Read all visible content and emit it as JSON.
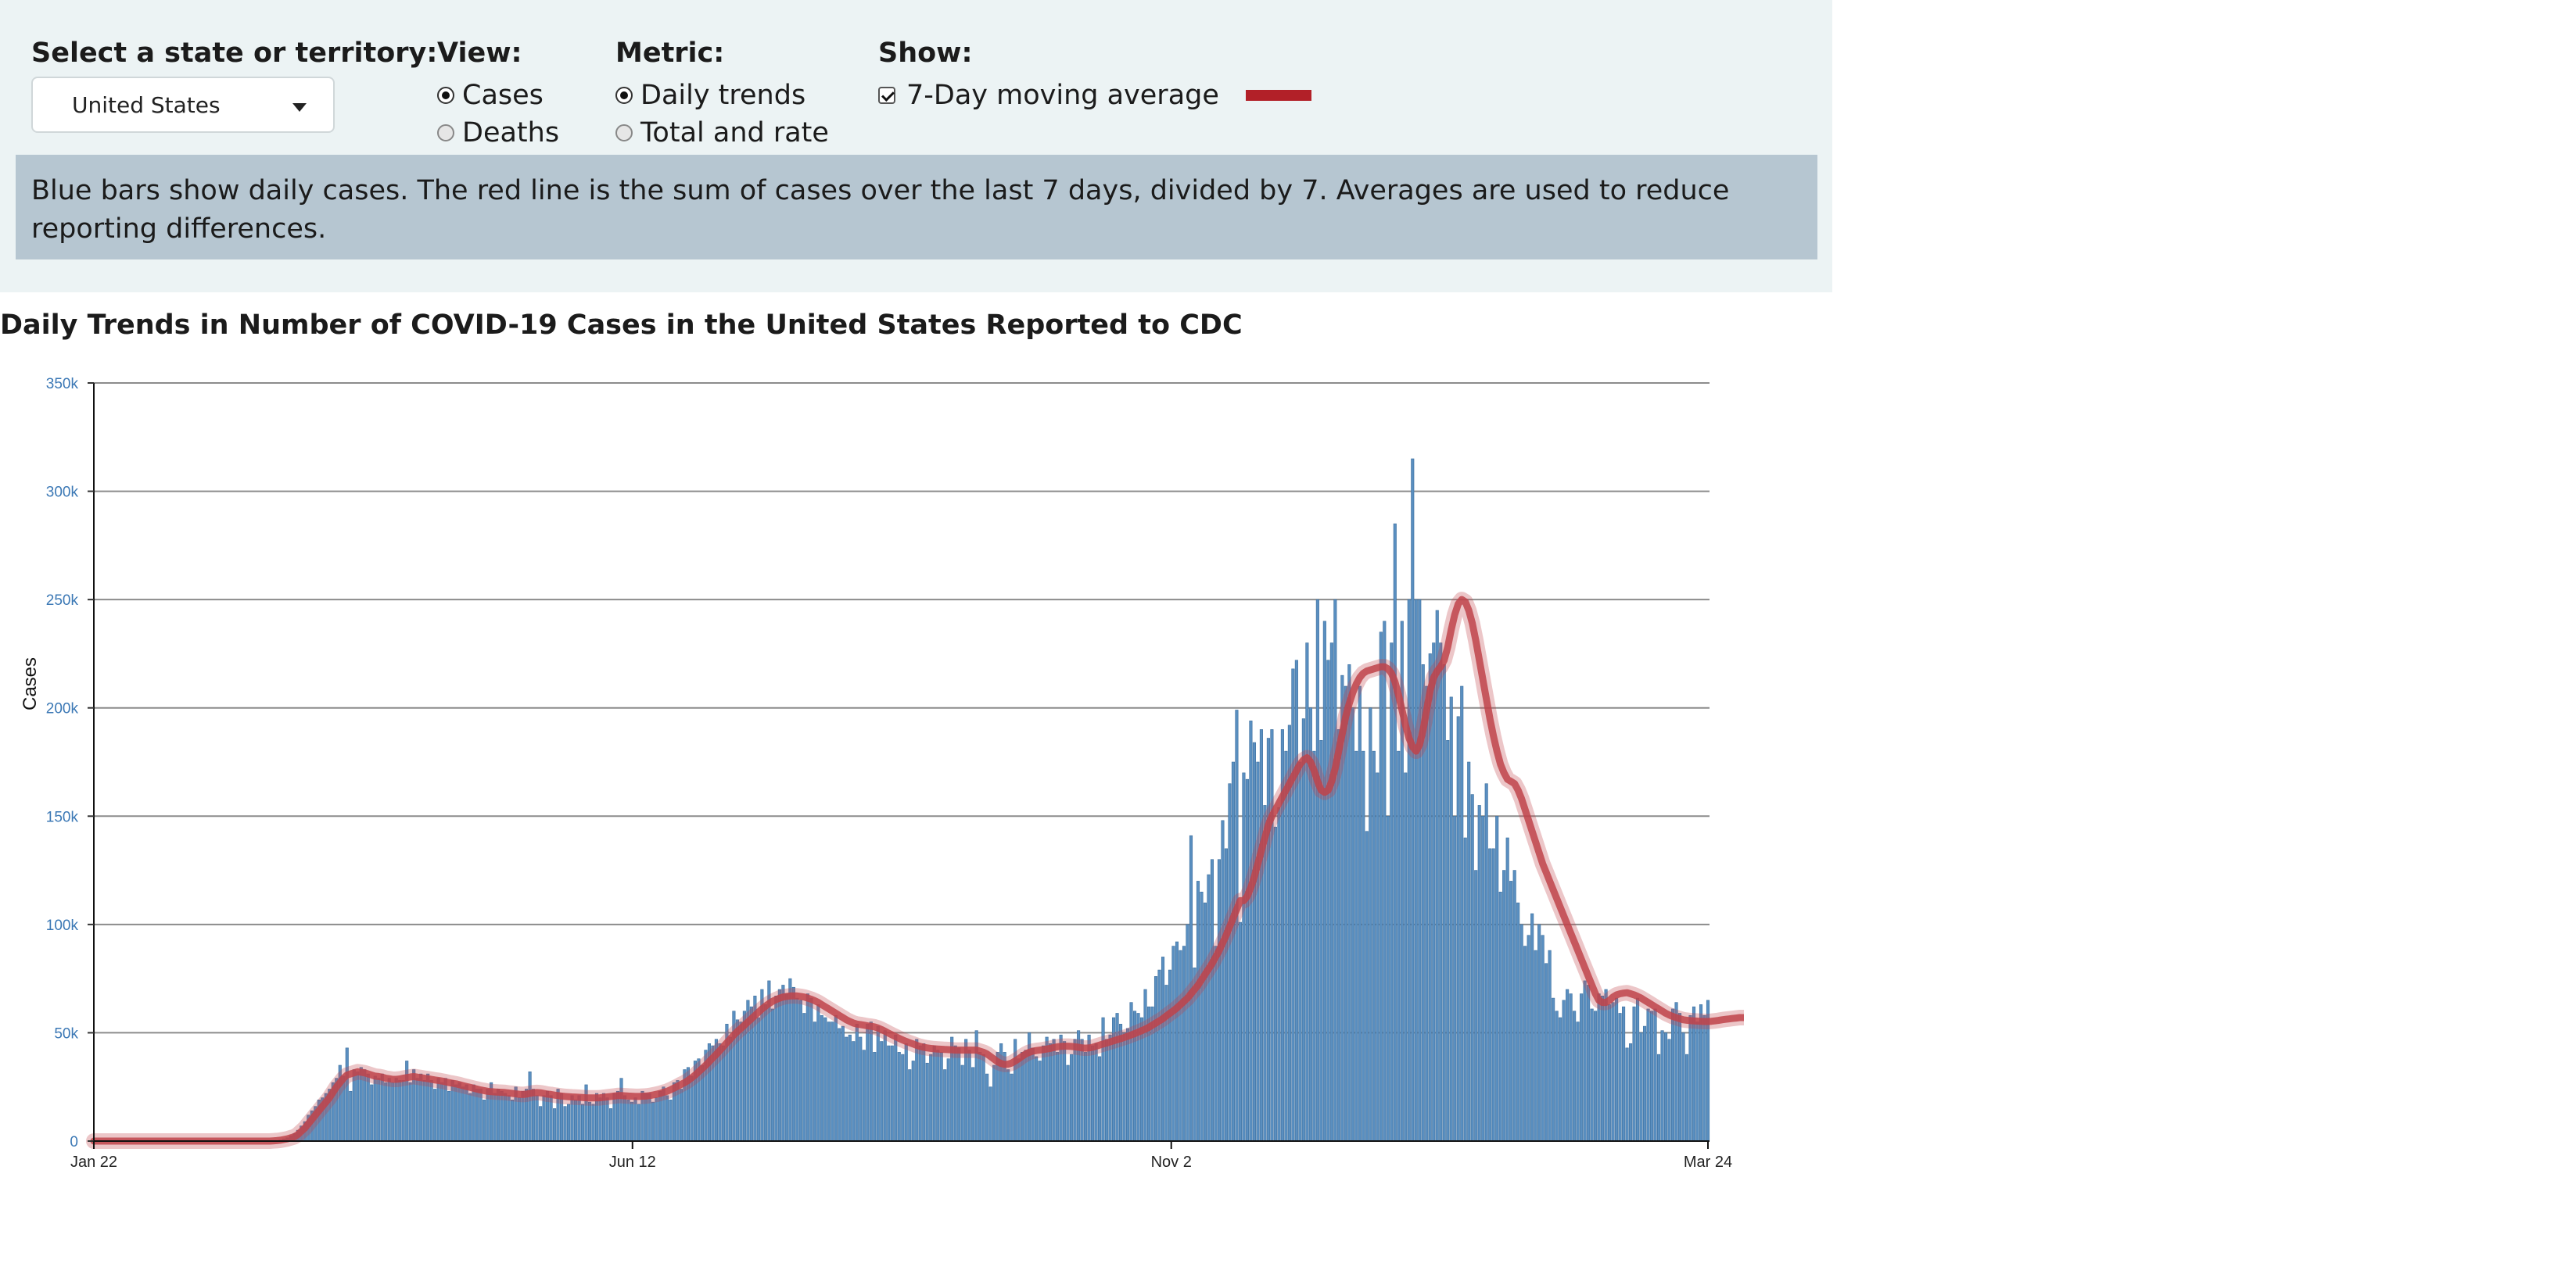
{
  "controls": {
    "state": {
      "label": "Select a state or territory:",
      "selected": "United States"
    },
    "view": {
      "label": "View:",
      "options": [
        "Cases",
        "Deaths"
      ],
      "selected": "Cases"
    },
    "metric": {
      "label": "Metric:",
      "options": [
        "Daily trends",
        "Total and rate"
      ],
      "selected": "Daily trends"
    },
    "show": {
      "label": "Show:",
      "option": "7-Day moving average",
      "checked": true
    }
  },
  "note": "Blue bars show daily cases. The red line is the sum of cases over the last 7 days, divided by 7. Averages are used to reduce reporting differences.",
  "colors": {
    "bar": "#5a8fc0",
    "bar_edge": "#3d6f9e",
    "line": "#c0434a",
    "panel": "#ecf3f4",
    "note": "#b6c6d1",
    "tick": "#3b78b5"
  },
  "chart_data": {
    "type": "bar",
    "title": "Daily Trends in Number of COVID-19 Cases in the United States Reported to CDC",
    "xlabel": "",
    "ylabel": "Cases",
    "ylim": [
      0,
      350000
    ],
    "y_ticks": [
      "0",
      "50k",
      "100k",
      "150k",
      "200k",
      "250k",
      "300k",
      "350k"
    ],
    "x_ticks": [
      "Jan 22",
      "Jun 12",
      "Nov 2",
      "Mar 24"
    ],
    "grid": true,
    "series": [
      {
        "kind": "bar",
        "values": [
          0,
          0,
          0,
          0,
          0,
          0,
          0,
          0,
          0,
          0,
          0,
          0,
          0,
          0,
          0,
          0,
          0,
          0,
          0,
          0,
          0,
          0,
          0,
          0,
          0,
          0,
          0,
          0,
          0,
          0,
          0,
          0,
          0,
          0,
          0,
          0,
          0,
          0,
          0,
          0,
          0,
          0,
          0,
          0,
          0,
          0,
          0,
          0,
          0,
          0,
          0,
          100,
          200,
          500,
          1000,
          1500,
          2500,
          3500,
          5000,
          7000,
          9000,
          12000,
          14000,
          16000,
          19000,
          20000,
          22000,
          24000,
          27000,
          29000,
          35000,
          30000,
          43000,
          23000,
          33000,
          32000,
          34000,
          33000,
          31000,
          26000,
          30000,
          29000,
          31000,
          27000,
          29000,
          27000,
          29000,
          28000,
          28000,
          37000,
          27000,
          33000,
          29000,
          31000,
          28000,
          31000,
          28000,
          24000,
          29000,
          27000,
          29000,
          23000,
          28000,
          26000,
          27000,
          25000,
          26000,
          22000,
          26000,
          24000,
          24000,
          19000,
          24000,
          27000,
          22000,
          24000,
          23000,
          22000,
          21000,
          19000,
          25000,
          20000,
          23000,
          24000,
          32000,
          24000,
          21000,
          16000,
          21000,
          23000,
          21000,
          15000,
          24000,
          22000,
          16000,
          17000,
          21000,
          19000,
          21000,
          17000,
          26000,
          18000,
          17000,
          22000,
          20000,
          22000,
          20000,
          15000,
          22000,
          23000,
          29000,
          21000,
          19000,
          18000,
          20000,
          17000,
          23000,
          22000,
          22000,
          18000,
          20000,
          23000,
          25000,
          21000,
          19000,
          27000,
          28000,
          24000,
          33000,
          34000,
          30000,
          37000,
          38000,
          35000,
          42000,
          45000,
          44000,
          47000,
          45000,
          44000,
          54000,
          48000,
          60000,
          56000,
          55000,
          60000,
          65000,
          62000,
          67000,
          57000,
          70000,
          63000,
          74000,
          61000,
          67000,
          70000,
          72000,
          68000,
          75000,
          71000,
          66000,
          65000,
          59000,
          68000,
          66000,
          55000,
          63000,
          58000,
          57000,
          55000,
          55000,
          58000,
          52000,
          53000,
          48000,
          49000,
          46000,
          54000,
          48000,
          42000,
          54000,
          55000,
          41000,
          53000,
          46000,
          51000,
          44000,
          44000,
          49000,
          41000,
          40000,
          45000,
          33000,
          37000,
          47000,
          44000,
          45000,
          36000,
          40000,
          44000,
          42000,
          41000,
          33000,
          38000,
          48000,
          44000,
          43000,
          35000,
          47000,
          42000,
          34000,
          51000,
          41000,
          40000,
          31000,
          25000,
          35000,
          41000,
          45000,
          41000,
          33000,
          31000,
          47000,
          38000,
          41000,
          42000,
          50000,
          43000,
          39000,
          37000,
          44000,
          48000,
          45000,
          47000,
          41000,
          49000,
          46000,
          35000,
          40000,
          47000,
          51000,
          47000,
          41000,
          49000,
          44000,
          45000,
          39000,
          57000,
          47000,
          49000,
          57000,
          59000,
          54000,
          50000,
          52000,
          64000,
          60000,
          59000,
          57000,
          70000,
          62000,
          62000,
          76000,
          79000,
          85000,
          72000,
          79000,
          90000,
          92000,
          88000,
          90000,
          100000,
          141000,
          80000,
          120000,
          115000,
          110000,
          123000,
          130000,
          90000,
          130000,
          148000,
          135000,
          165000,
          175000,
          199000,
          101000,
          170000,
          167000,
          194000,
          184000,
          175000,
          190000,
          155000,
          186000,
          190000,
          145000,
          154000,
          190000,
          180000,
          192000,
          218000,
          222000,
          175000,
          195000,
          230000,
          200000,
          180000,
          250000,
          185000,
          240000,
          222000,
          230000,
          250000,
          190000,
          215000,
          210000,
          220000,
          200000,
          180000,
          210000,
          180000,
          143000,
          200000,
          180000,
          170000,
          235000,
          240000,
          150000,
          230000,
          285000,
          180000,
          240000,
          170000,
          250000,
          315000,
          250000,
          250000,
          220000,
          210000,
          225000,
          230000,
          245000,
          230000,
          220000,
          185000,
          205000,
          150000,
          196000,
          210000,
          140000,
          175000,
          160000,
          125000,
          155000,
          150000,
          165000,
          135000,
          135000,
          150000,
          115000,
          125000,
          140000,
          120000,
          125000,
          110000,
          100000,
          90000,
          95000,
          105000,
          88000,
          100000,
          95000,
          82000,
          88000,
          66000,
          60000,
          57000,
          65000,
          70000,
          68000,
          60000,
          55000,
          68000,
          74000,
          72000,
          61000,
          60000,
          68000,
          67000,
          70000,
          63000,
          64000,
          66000,
          59000,
          62000,
          43000,
          45000,
          62000,
          66000,
          50000,
          53000,
          61000,
          60000,
          61000,
          40000,
          51000,
          50000,
          47000,
          61000,
          64000,
          59000,
          50000,
          40000,
          58000,
          62000,
          55000,
          63000,
          58000,
          65000
        ]
      },
      {
        "kind": "line",
        "name": "7-Day moving average",
        "values": [
          0,
          0,
          0,
          0,
          0,
          0,
          0,
          0,
          0,
          0,
          0,
          0,
          0,
          0,
          0,
          0,
          0,
          0,
          0,
          0,
          0,
          0,
          0,
          0,
          0,
          0,
          0,
          0,
          0,
          0,
          0,
          0,
          0,
          0,
          0,
          0,
          0,
          0,
          0,
          0,
          0,
          0,
          0,
          0,
          0,
          0,
          0,
          0,
          0,
          0,
          0,
          100,
          200,
          400,
          700,
          1000,
          1500,
          2000,
          3000,
          4500,
          6000,
          8000,
          10000,
          12000,
          14000,
          16000,
          18000,
          20000,
          22500,
          25000,
          27000,
          29000,
          30500,
          31000,
          31500,
          32000,
          31800,
          31500,
          31000,
          30500,
          30000,
          29800,
          29500,
          29000,
          28800,
          28500,
          28500,
          28700,
          29000,
          29300,
          29600,
          29800,
          29500,
          29300,
          29000,
          28800,
          28500,
          28200,
          28000,
          27700,
          27400,
          27000,
          26700,
          26400,
          26000,
          25600,
          25200,
          24800,
          24400,
          24000,
          23600,
          23300,
          23000,
          22800,
          22700,
          22600,
          22500,
          22400,
          22200,
          22000,
          21800,
          21600,
          21500,
          21700,
          22000,
          22300,
          22400,
          22300,
          22000,
          21700,
          21500,
          21200,
          21000,
          20800,
          20600,
          20500,
          20400,
          20300,
          20200,
          20100,
          20000,
          19900,
          19900,
          19900,
          20000,
          20200,
          20400,
          20600,
          20800,
          21000,
          21000,
          20900,
          20800,
          20700,
          20600,
          20600,
          20700,
          20800,
          21000,
          21300,
          21600,
          22000,
          22500,
          23000,
          23700,
          24500,
          25300,
          26200,
          27000,
          28000,
          29200,
          30500,
          32000,
          33500,
          35000,
          36700,
          38400,
          40000,
          41800,
          43600,
          45400,
          47200,
          49000,
          50600,
          52000,
          53500,
          55000,
          56500,
          58000,
          59500,
          61000,
          62300,
          63500,
          64500,
          65300,
          66000,
          66500,
          66800,
          67000,
          67000,
          67000,
          66800,
          66500,
          66000,
          65500,
          64800,
          64000,
          63000,
          62000,
          61000,
          60000,
          59000,
          58000,
          57000,
          56000,
          55200,
          54500,
          54000,
          53800,
          53500,
          53200,
          53000,
          52700,
          52200,
          51500,
          50700,
          49800,
          49000,
          48200,
          47400,
          46700,
          46000,
          45400,
          44800,
          44200,
          43700,
          43300,
          43000,
          42800,
          42600,
          42500,
          42400,
          42300,
          42200,
          42100,
          42000,
          42000,
          42000,
          42000,
          42000,
          42000,
          42000,
          41500,
          41000,
          40200,
          39000,
          37800,
          36600,
          35800,
          35400,
          35500,
          36000,
          37000,
          38000,
          39200,
          40200,
          41000,
          41500,
          41800,
          42000,
          42200,
          42500,
          42800,
          43200,
          43500,
          43700,
          43800,
          43800,
          43700,
          43500,
          43300,
          43000,
          42900,
          43000,
          43300,
          43800,
          44300,
          44800,
          45300,
          45800,
          46300,
          46800,
          47300,
          47800,
          48400,
          49000,
          49600,
          50300,
          51000,
          51700,
          52500,
          53500,
          54500,
          55500,
          56500,
          57800,
          59000,
          60200,
          61500,
          63000,
          64500,
          66000,
          68000,
          70000,
          72000,
          74500,
          77000,
          79500,
          82000,
          85000,
          88000,
          91500,
          95000,
          99000,
          103000,
          107000,
          111000,
          111000,
          113000,
          117000,
          122000,
          128000,
          134000,
          140000,
          146000,
          150000,
          153000,
          156000,
          159000,
          162000,
          165000,
          168000,
          171000,
          174000,
          176000,
          177000,
          175000,
          171000,
          166000,
          162000,
          161000,
          162000,
          166000,
          172000,
          180000,
          188000,
          196000,
          202000,
          207000,
          211000,
          214000,
          216000,
          217000,
          217500,
          218000,
          218500,
          219000,
          219000,
          218000,
          216000,
          212000,
          206000,
          199000,
          192000,
          186000,
          182000,
          180000,
          183000,
          190000,
          199000,
          208000,
          214000,
          217000,
          219000,
          222000,
          228000,
          236000,
          243000,
          248000,
          250000,
          249000,
          245000,
          239000,
          231000,
          222000,
          213000,
          204000,
          195000,
          187000,
          180000,
          174000,
          170000,
          167000,
          166000,
          165000,
          162000,
          158000,
          153000,
          148000,
          143000,
          138000,
          133000,
          128000,
          124000,
          120000,
          116000,
          112000,
          108000,
          104000,
          100000,
          96000,
          92000,
          88000,
          84000,
          80000,
          76000,
          72000,
          68000,
          65000,
          64000,
          64000,
          65000,
          66500,
          67500,
          68000,
          68300,
          68500,
          68000,
          67500,
          66800,
          66000,
          65000,
          64000,
          63000,
          62000,
          61000,
          60000,
          59000,
          58200,
          57500,
          57000,
          56500,
          56000,
          55800,
          55600,
          55500,
          55400,
          55300,
          55200,
          55200,
          55300,
          55500,
          55700,
          56000,
          56200,
          56400,
          56600,
          56800,
          57000,
          57000,
          57000,
          57000,
          57000,
          57000,
          57200,
          57500,
          58000
        ]
      }
    ]
  }
}
